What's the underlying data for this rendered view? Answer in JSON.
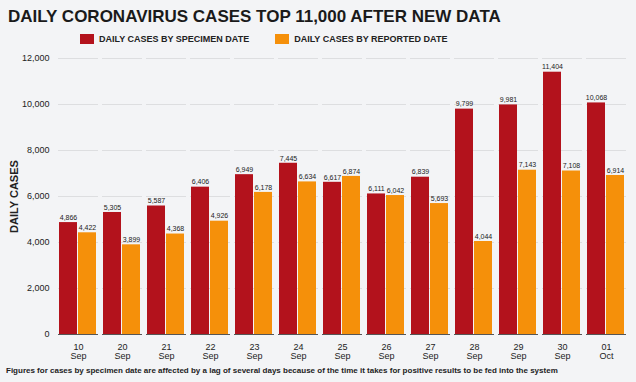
{
  "chart_data": {
    "type": "bar",
    "title": "DAILY CORONAVIRUS CASES TOP 11,000 AFTER NEW DATA",
    "y_label": "DAILY CASES",
    "caption": "Figures for cases by specimen date are affected by a lag of several days because of the time it takes for positive results to be fed into the system",
    "categories": [
      "10 Sep",
      "20 Sep",
      "21 Sep",
      "22 Sep",
      "23 Sep",
      "24 Sep",
      "25 Sep",
      "26 Sep",
      "27 Sep",
      "28 Sep",
      "29 Sep",
      "30 Sep",
      "01 Oct"
    ],
    "series": [
      {
        "name": "DAILY CASES BY SPECIMEN DATE",
        "color": "#b3121c",
        "values": [
          4866,
          5305,
          5587,
          6406,
          6949,
          7445,
          6617,
          6111,
          6839,
          9799,
          9981,
          11404,
          10068
        ],
        "value_labels": [
          "4,866",
          "5,305",
          "5,587",
          "6,406",
          "6,949",
          "7,445",
          "6,617",
          "6,111",
          "6,839",
          "9,799",
          "9,981",
          "11,404",
          "10,068"
        ]
      },
      {
        "name": "DAILY CASES BY REPORTED DATE",
        "color": "#f5900a",
        "values": [
          4422,
          3899,
          4368,
          4926,
          6178,
          6634,
          6874,
          6042,
          5693,
          4044,
          7143,
          7108,
          6914
        ],
        "value_labels": [
          "4,422",
          "3,899",
          "4,368",
          "4,926",
          "6,178",
          "6,634",
          "6,874",
          "6,042",
          "5,693",
          "4,044",
          "7,143",
          "7,108",
          "6,914"
        ]
      }
    ],
    "ylim": [
      0,
      12000
    ],
    "yticks": [
      0,
      {
        "value": 2000,
        "label": "2,000"
      },
      {
        "value": 4000,
        "label": "4,000"
      },
      {
        "value": 6000,
        "label": "6,000"
      },
      {
        "value": 8000,
        "label": "8,000"
      },
      {
        "value": 10000,
        "label": "10,000"
      },
      {
        "value": 12000,
        "label": "12,000"
      }
    ],
    "grid": true,
    "data_labels": true,
    "legend": "top"
  }
}
